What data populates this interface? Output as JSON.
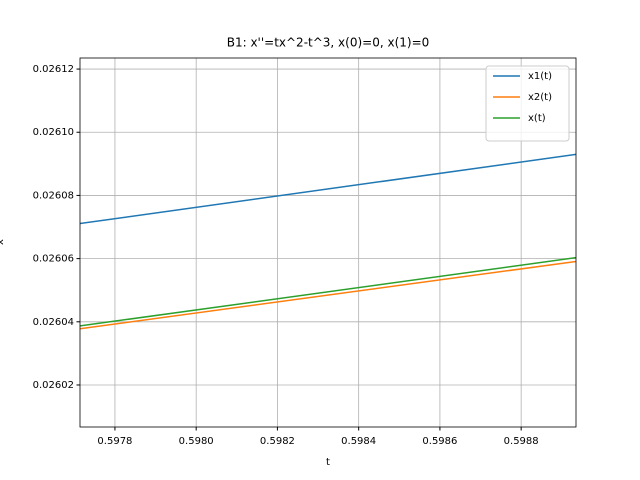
{
  "chart_data": {
    "type": "line",
    "title": "B1: x''=tx^2-t^3, x(0)=0, x(1)=0",
    "x_label": "t",
    "y_label": "x",
    "x": [
      0.597714,
      0.598935
    ],
    "series": [
      {
        "name": "x1(t)",
        "color": "#1f77b4",
        "values": [
          0.0260711,
          0.026093
        ]
      },
      {
        "name": "x2(t)",
        "color": "#ff7f0e",
        "values": [
          0.0260378,
          0.0260591
        ]
      },
      {
        "name": "x(t)",
        "color": "#2ca02c",
        "values": [
          0.0260387,
          0.0260603
        ]
      }
    ],
    "xlim": [
      0.597714,
      0.598935
    ],
    "xticks": [
      0.5978,
      {
        "value": 0.598,
        "label": "0.5980"
      },
      0.5982,
      0.5984,
      0.5986,
      0.5988
    ],
    "ylim": [
      0.0260067,
      0.0261235
    ],
    "yticks": [
      0.02602,
      0.02604,
      0.02606,
      0.02608,
      {
        "value": 0.0261,
        "label": "0.02610"
      },
      0.02612
    ],
    "grid": true,
    "legend": "upper right"
  }
}
